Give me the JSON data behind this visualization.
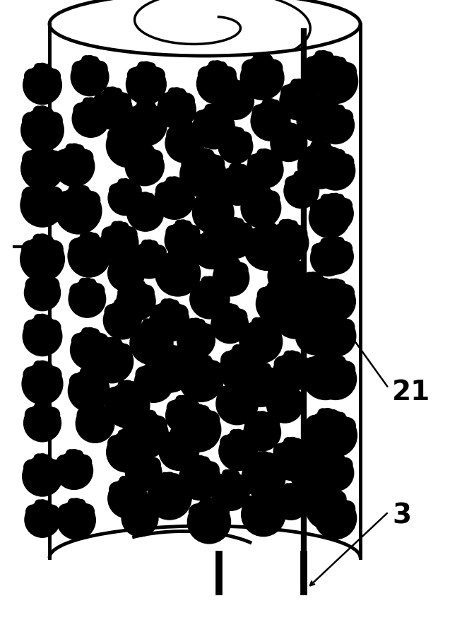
{
  "bg_color": "#ffffff",
  "figure_width": 6.37,
  "figure_height": 8.78,
  "dpi": 100,
  "label_21": "21",
  "label_3": "3",
  "label_21_fontsize": 28,
  "label_3_fontsize": 28,
  "cylinder_color": "#000000",
  "yeast_color": "#000000",
  "line_color": "#000000"
}
